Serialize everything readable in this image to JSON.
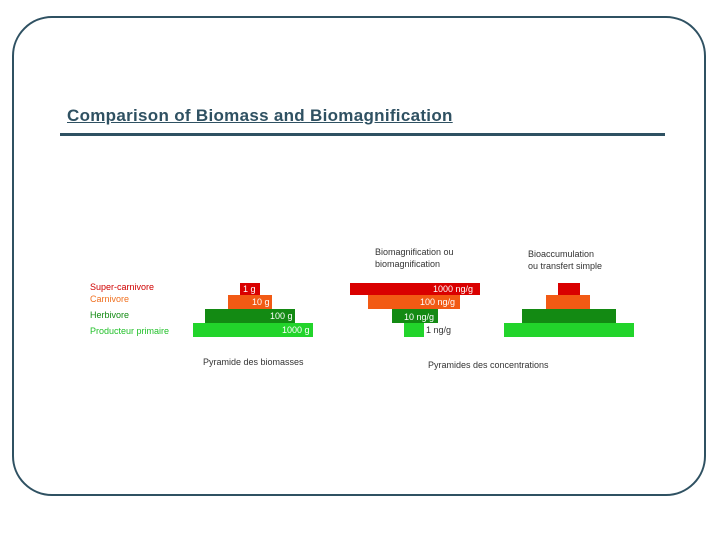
{
  "title": "Comparison of Biomass and Biomagnification",
  "colors": {
    "frame": "#2f5162",
    "superCarnivore": "#d90000",
    "carnivore": "#f25a14",
    "herbivore": "#138a13",
    "producer": "#22d42b"
  },
  "levels": [
    {
      "name": "Super-carnivore",
      "color": "#d00000"
    },
    {
      "name": "Carnivore",
      "color": "#f07020"
    },
    {
      "name": "Herbivore",
      "color": "#128a12"
    },
    {
      "name": "Producteur primaire",
      "color": "#22c02a"
    }
  ],
  "biomass_pyramid": {
    "caption": "Pyramide des biomasses",
    "values": [
      "1 g",
      "10 g",
      "100 g",
      "1000 g"
    ]
  },
  "biomagnification_pyramid": {
    "heading_line1": "Biomagnification ou",
    "heading_line2": "biomagnification",
    "values": [
      "1000 ng/g",
      "100 ng/g",
      "10 ng/g",
      "1 ng/g"
    ]
  },
  "bioaccumulation_pyramid": {
    "heading_line1": "Bioaccumulation",
    "heading_line2": "ou transfert simple"
  },
  "concentration_caption": "Pyramides des concentrations"
}
